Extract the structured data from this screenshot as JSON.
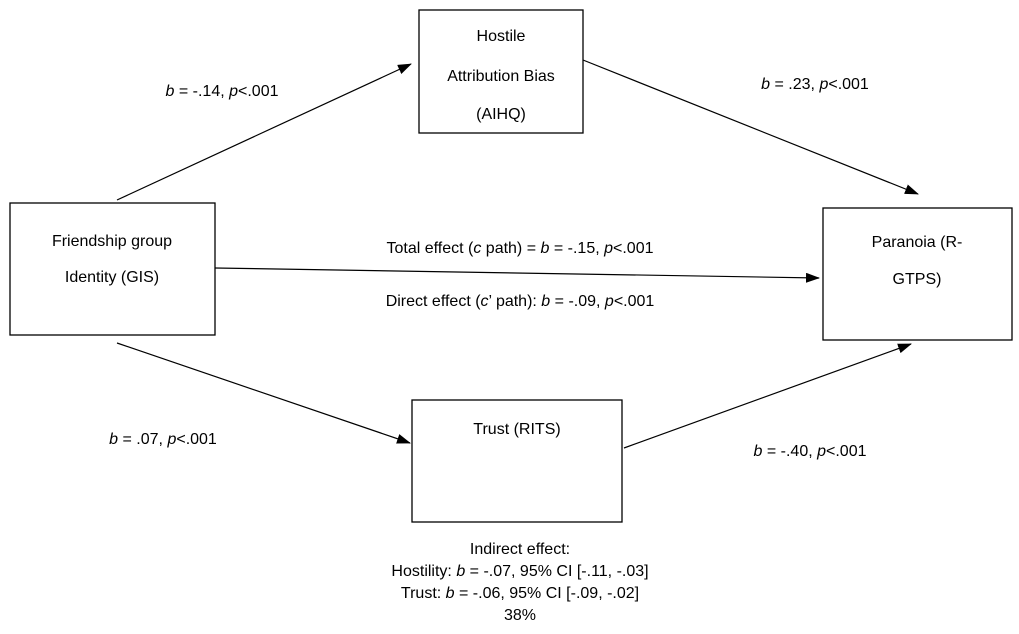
{
  "nodes": [
    {
      "lines": [
        "Hostile",
        "Attribution Bias",
        "(AIHQ)"
      ]
    },
    {
      "lines": [
        "Friendship group",
        "Identity (GIS)"
      ]
    },
    {
      "lines": [
        "Paranoia (R-",
        "GTPS)"
      ]
    },
    {
      "lines": [
        "Trust (RITS)"
      ]
    }
  ],
  "edges": [
    {
      "label": [
        "b",
        " = -.14, ",
        "p",
        "<.001"
      ]
    },
    {
      "label": [
        "b",
        " = .23, ",
        "p",
        "<.001"
      ]
    },
    {
      "label": [
        "Total effect (",
        "c",
        " path) = ",
        "b",
        " = -.15, ",
        "p",
        "<.001"
      ]
    },
    {
      "label": [
        "Direct effect (",
        "c",
        "’ path): ",
        "b",
        " = -.09, ",
        "p",
        "<.001"
      ]
    },
    {
      "label": [
        "b",
        " = .07, ",
        "p",
        "<.001"
      ]
    },
    {
      "label": [
        "b",
        " = -.40, ",
        "p",
        "<.001"
      ]
    }
  ],
  "indirect_effect": {
    "heading": "Indirect effect:",
    "lines": [
      [
        "Hostility: ",
        "b",
        " = -.07, 95% CI [-.11, -.03]"
      ],
      [
        "Trust: ",
        "b",
        " = -.06, 95% CI [-.09, -.02]"
      ],
      [
        "38%"
      ]
    ]
  }
}
